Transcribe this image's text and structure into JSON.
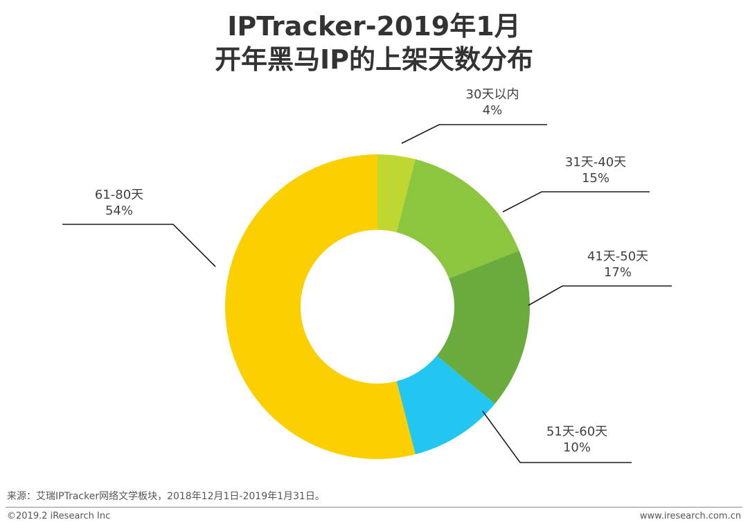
{
  "title_line1": "IPTracker-2019年1月",
  "title_line2": "开年黑马IP的上架天数分布",
  "chart_data": {
    "type": "pie",
    "donut": true,
    "title": "IPTracker-2019年1月 开年黑马IP的上架天数分布",
    "categories": [
      "30天以内",
      "31天-40天",
      "41天-50天",
      "51天-60天",
      "61-80天"
    ],
    "values": [
      4,
      15,
      17,
      10,
      54
    ],
    "value_labels": [
      "4%",
      "15%",
      "17%",
      "10%",
      "54%"
    ],
    "colors": [
      "#bfd730",
      "#8cc63f",
      "#6aab3e",
      "#22c6f0",
      "#fccf00"
    ]
  },
  "footer": {
    "source": "来源：艾瑞IPTracker网络文学板块，2018年12月1日-2019年1月31日。",
    "copyright": "©2019.2 iResearch Inc",
    "website": "www.iresearch.com.cn"
  }
}
